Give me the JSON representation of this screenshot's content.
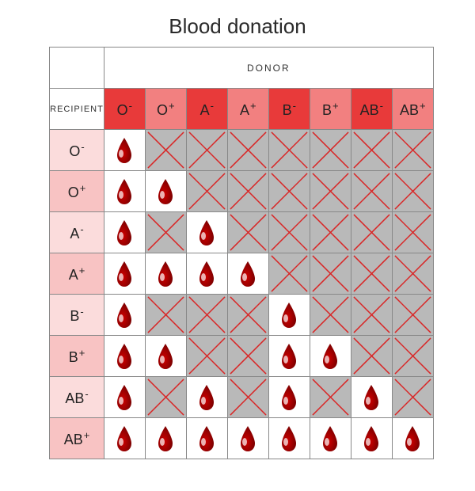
{
  "title": "Blood donation",
  "labels": {
    "donor": "DONOR",
    "recipient": "RECIPIENT"
  },
  "blood_types": [
    {
      "base": "O",
      "sign": "-"
    },
    {
      "base": "O",
      "sign": "+"
    },
    {
      "base": "A",
      "sign": "-"
    },
    {
      "base": "A",
      "sign": "+"
    },
    {
      "base": "B",
      "sign": "-"
    },
    {
      "base": "B",
      "sign": "+"
    },
    {
      "base": "AB",
      "sign": "-"
    },
    {
      "base": "AB",
      "sign": "+"
    }
  ],
  "compat": [
    [
      1,
      0,
      0,
      0,
      0,
      0,
      0,
      0
    ],
    [
      1,
      1,
      0,
      0,
      0,
      0,
      0,
      0
    ],
    [
      1,
      0,
      1,
      0,
      0,
      0,
      0,
      0
    ],
    [
      1,
      1,
      1,
      1,
      0,
      0,
      0,
      0
    ],
    [
      1,
      0,
      0,
      0,
      1,
      0,
      0,
      0
    ],
    [
      1,
      1,
      0,
      0,
      1,
      1,
      0,
      0
    ],
    [
      1,
      0,
      1,
      0,
      1,
      0,
      1,
      0
    ],
    [
      1,
      1,
      1,
      1,
      1,
      1,
      1,
      1
    ]
  ],
  "style": {
    "title_fontsize": 26,
    "cell_size": 52,
    "recipient_col_width": 72,
    "border_color": "#888888",
    "yes_bg": "#ffffff",
    "no_bg": "#b9b9b9",
    "cross_color": "#d92626",
    "cross_stroke": 1.5,
    "drop_main": "#d00000",
    "drop_dark": "#7a0000",
    "drop_highlight": "#ffffff",
    "donor_header_bg": "#f28080",
    "donor_header_bg_dark": "#e83a3a",
    "recipient_header_bg": "#fbdcdc",
    "recipient_header_bg_dark": "#f8c3c3",
    "label_fontsize": 18,
    "small_label_fontsize": 11
  },
  "type": "compatibility-matrix"
}
